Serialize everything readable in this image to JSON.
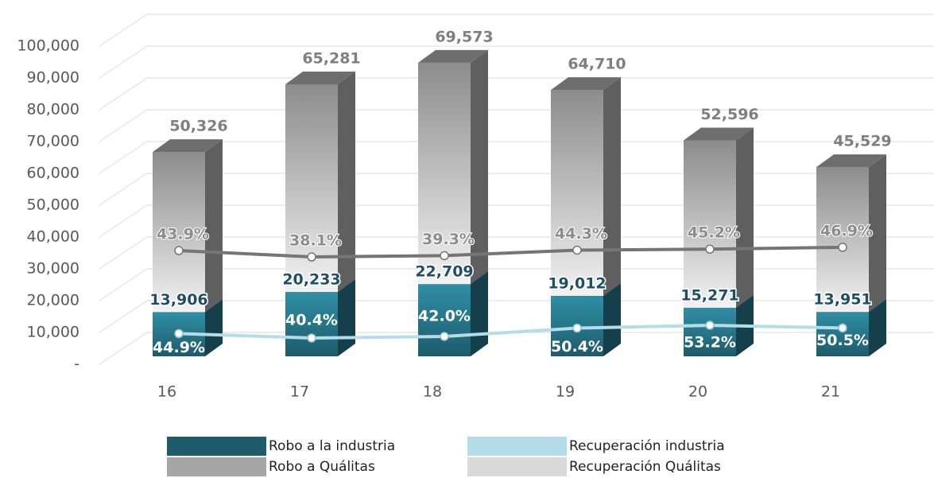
{
  "chart_data": {
    "type": "bar3d",
    "categories": [
      "16",
      "17",
      "18",
      "19",
      "20",
      "21"
    ],
    "series": [
      {
        "name": "Robo a la industria",
        "color": "#1e5b6b",
        "values": [
          13906,
          20233,
          22709,
          19012,
          15271,
          13951
        ],
        "value_labels": [
          "13,906",
          "20,233",
          "22,709",
          "19,012",
          "15,271",
          "13,951"
        ]
      },
      {
        "name": "Robo a Quálitas",
        "color": "#a6a6a6",
        "values": [
          50326,
          65281,
          69573,
          64710,
          52596,
          45529
        ],
        "value_labels": [
          "50,326",
          "65,281",
          "69,573",
          "64,710",
          "52,596",
          "45,529"
        ]
      },
      {
        "name": "Recuperación industria",
        "type": "line",
        "axis": "y2",
        "color": "#b4dde9",
        "values": [
          44.9,
          40.4,
          42.0,
          50.4,
          53.2,
          50.5
        ],
        "value_labels": [
          "44.9%",
          "40.4%",
          "42.0%",
          "50.4%",
          "53.2%",
          "50.5%"
        ]
      },
      {
        "name": "Recuperación Quálitas",
        "type": "line",
        "axis": "y3",
        "color": "#757575",
        "values": [
          43.9,
          38.1,
          39.3,
          44.3,
          45.2,
          46.9
        ],
        "value_labels": [
          "43.9%",
          "38.1%",
          "39.3%",
          "44.3%",
          "45.2%",
          "46.9%"
        ]
      }
    ],
    "ylim": [
      0,
      100000
    ],
    "yticks": [
      {
        "value": 0,
        "label": "-"
      },
      {
        "value": 10000,
        "label": "10,000"
      },
      {
        "value": 20000,
        "label": "20,000"
      },
      {
        "value": 30000,
        "label": "30,000"
      },
      {
        "value": 40000,
        "label": "40,000"
      },
      {
        "value": 50000,
        "label": "50,000"
      },
      {
        "value": 60000,
        "label": "60,000"
      },
      {
        "value": 70000,
        "label": "70,000"
      },
      {
        "value": 80000,
        "label": "80,000"
      },
      {
        "value": 90000,
        "label": "90,000"
      },
      {
        "value": 100000,
        "label": "100,000"
      }
    ],
    "y2lim": [
      22,
      342
    ],
    "y3lim": [
      -52.5,
      237.5
    ],
    "grid": true
  }
}
